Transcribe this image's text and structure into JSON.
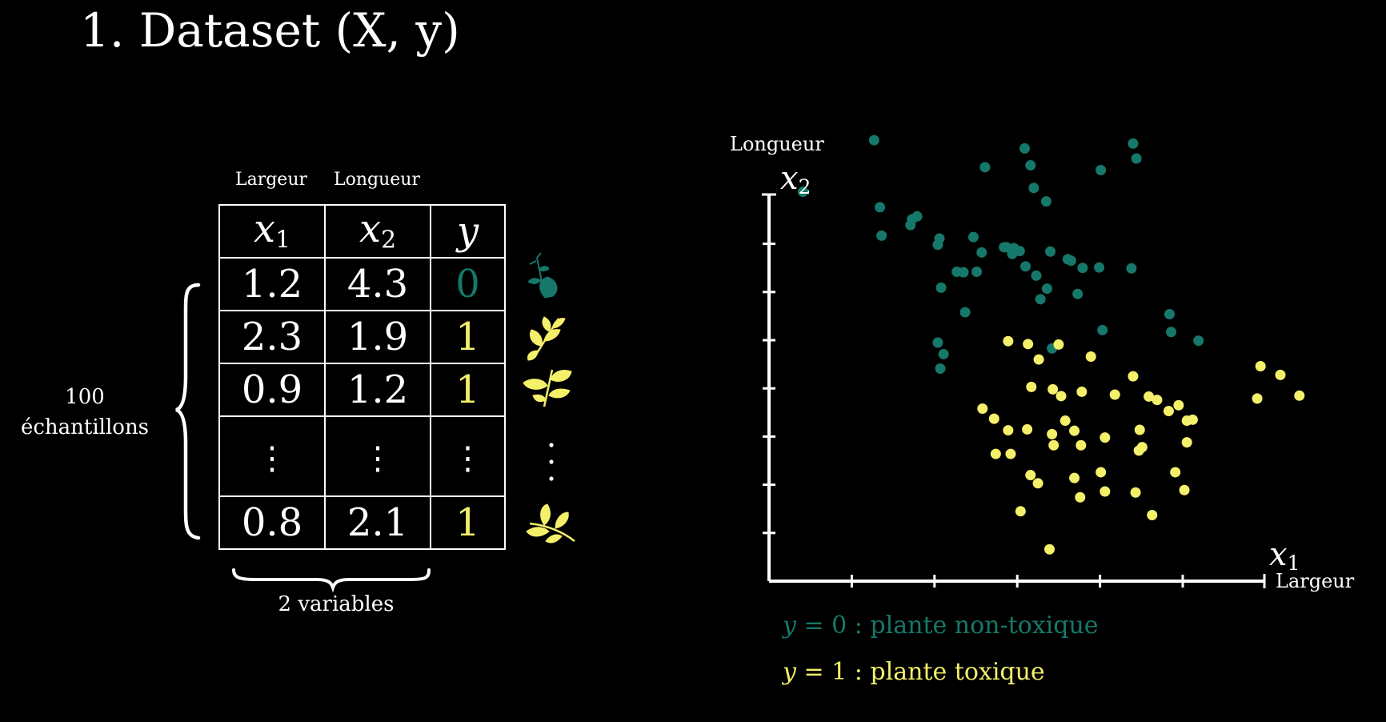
{
  "title": "1. Dataset (X, y)",
  "colors": {
    "class0": "#16786a",
    "class1": "#f5f06a",
    "foreground": "#ffffff",
    "background": "#000000"
  },
  "table": {
    "header_words": [
      "Largeur",
      "Longueur"
    ],
    "headers": [
      {
        "sym": "x",
        "sub": "1"
      },
      {
        "sym": "x",
        "sub": "2"
      },
      {
        "sym": "y",
        "sub": ""
      }
    ],
    "rows": [
      [
        "1.2",
        "4.3",
        "0"
      ],
      [
        "2.3",
        "1.9",
        "1"
      ],
      [
        "0.9",
        "1.2",
        "1"
      ],
      [
        "⋮",
        "⋮",
        "⋮"
      ],
      [
        "0.8",
        "2.1",
        "1"
      ]
    ],
    "row_classes": [
      0,
      1,
      1,
      null,
      1
    ]
  },
  "samples_label": [
    "100",
    "échantillons"
  ],
  "variables_label": "2 variables",
  "plant_icons": [
    "leaf-teal-icon",
    "leaf-yellow-icon",
    "leaf-yellow-icon",
    "vertical-dots",
    "leaf-yellow-icon"
  ],
  "chart_data": {
    "type": "scatter",
    "xlabel": "Largeur",
    "ylabel": "Longueur",
    "xsymbol": "x1",
    "ysymbol": "x2",
    "x_ticks": 6,
    "y_ticks": 8,
    "series": [
      {
        "name": "y = 0 : plante non-toxique",
        "color": "#16786a",
        "points": [
          [
            0.41,
            8.08
          ],
          [
            1.27,
            9.15
          ],
          [
            1.34,
            7.76
          ],
          [
            1.36,
            7.17
          ],
          [
            1.73,
            7.51
          ],
          [
            1.71,
            7.39
          ],
          [
            1.79,
            7.57
          ],
          [
            2.06,
            7.11
          ],
          [
            2.04,
            6.98
          ],
          [
            2.08,
            6.09
          ],
          [
            2.04,
            4.95
          ],
          [
            2.11,
            4.71
          ],
          [
            2.07,
            4.41
          ],
          [
            2.37,
            5.58
          ],
          [
            2.27,
            6.42
          ],
          [
            2.35,
            6.41
          ],
          [
            2.51,
            6.42
          ],
          [
            2.47,
            7.14
          ],
          [
            2.57,
            6.82
          ],
          [
            2.61,
            8.59
          ],
          [
            2.84,
            6.93
          ],
          [
            2.87,
            6.93
          ],
          [
            2.94,
            6.79
          ],
          [
            2.96,
            6.91
          ],
          [
            3.03,
            6.85
          ],
          [
            3.09,
            8.98
          ],
          [
            3.16,
            8.63
          ],
          [
            3.2,
            8.16
          ],
          [
            3.35,
            7.88
          ],
          [
            3.4,
            6.84
          ],
          [
            3.1,
            6.53
          ],
          [
            3.23,
            6.34
          ],
          [
            3.36,
            6.07
          ],
          [
            3.28,
            5.85
          ],
          [
            3.61,
            6.68
          ],
          [
            3.65,
            6.65
          ],
          [
            3.79,
            6.5
          ],
          [
            3.99,
            6.51
          ],
          [
            3.73,
            5.96
          ],
          [
            4.03,
            5.21
          ],
          [
            4.01,
            8.53
          ],
          [
            4.38,
            6.49
          ],
          [
            4.4,
            9.08
          ],
          [
            4.44,
            8.77
          ],
          [
            4.84,
            5.54
          ],
          [
            4.86,
            5.17
          ],
          [
            5.19,
            4.99
          ],
          [
            3.42,
            4.83
          ]
        ]
      },
      {
        "name": "y = 1 : plante toxique",
        "color": "#f5f06a",
        "points": [
          [
            2.89,
            4.98
          ],
          [
            3.13,
            4.92
          ],
          [
            3.26,
            4.6
          ],
          [
            3.5,
            4.91
          ],
          [
            3.89,
            4.66
          ],
          [
            3.17,
            4.03
          ],
          [
            3.43,
            3.98
          ],
          [
            3.53,
            3.84
          ],
          [
            3.78,
            3.93
          ],
          [
            4.18,
            3.87
          ],
          [
            4.4,
            4.25
          ],
          [
            2.58,
            3.58
          ],
          [
            2.72,
            3.37
          ],
          [
            2.89,
            3.13
          ],
          [
            3.12,
            3.15
          ],
          [
            3.58,
            3.33
          ],
          [
            3.42,
            3.05
          ],
          [
            3.44,
            2.82
          ],
          [
            3.69,
            3.12
          ],
          [
            3.77,
            2.82
          ],
          [
            4.06,
            2.98
          ],
          [
            4.59,
            3.83
          ],
          [
            4.69,
            3.76
          ],
          [
            4.95,
            3.65
          ],
          [
            5.05,
            3.33
          ],
          [
            4.83,
            3.53
          ],
          [
            5.12,
            3.35
          ],
          [
            4.48,
            3.14
          ],
          [
            5.05,
            2.88
          ],
          [
            4.47,
            2.71
          ],
          [
            4.51,
            2.78
          ],
          [
            2.74,
            2.64
          ],
          [
            2.92,
            2.64
          ],
          [
            3.16,
            2.2
          ],
          [
            3.25,
            2.03
          ],
          [
            3.69,
            2.14
          ],
          [
            4.01,
            2.26
          ],
          [
            3.76,
            1.74
          ],
          [
            4.06,
            1.86
          ],
          [
            4.43,
            1.84
          ],
          [
            4.91,
            2.26
          ],
          [
            5.02,
            1.89
          ],
          [
            3.04,
            1.45
          ],
          [
            3.39,
            0.66
          ],
          [
            4.63,
            1.37
          ],
          [
            5.94,
            4.46
          ],
          [
            6.18,
            4.28
          ],
          [
            6.41,
            3.85
          ],
          [
            5.9,
            3.79
          ]
        ]
      }
    ]
  },
  "legend": [
    {
      "var": "y",
      "text": " = 0 : plante non-toxique"
    },
    {
      "var": "y",
      "text": " = 1 : plante toxique"
    }
  ]
}
